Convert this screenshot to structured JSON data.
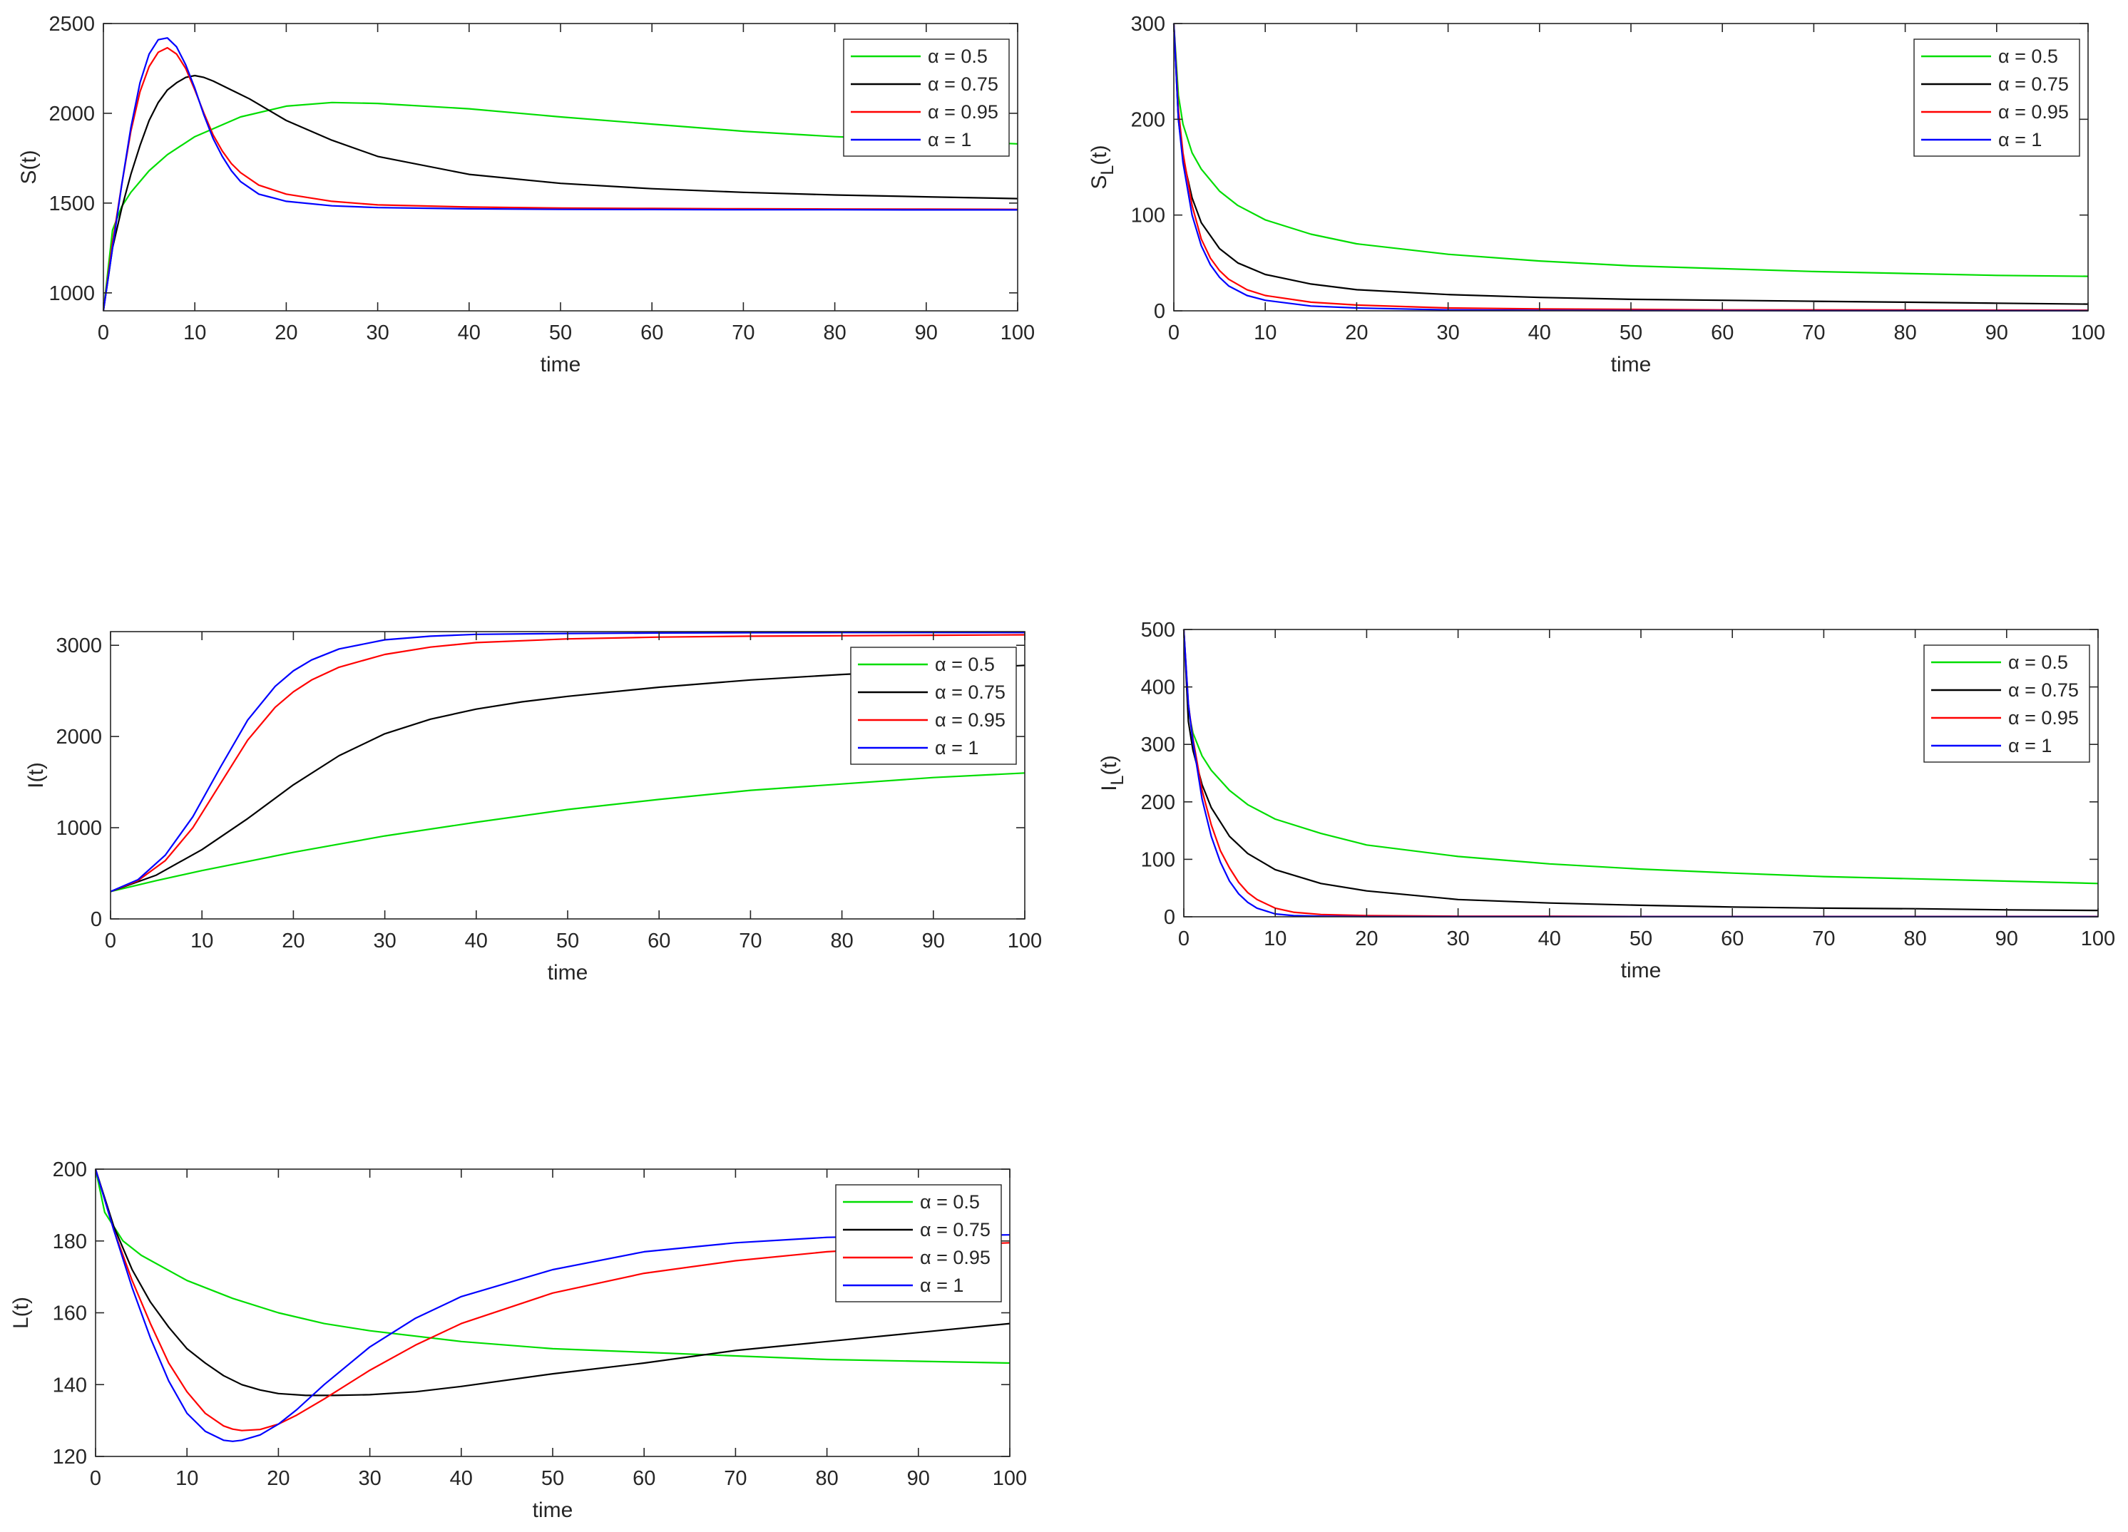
{
  "chart_data": [
    {
      "id": "S",
      "type": "line",
      "title": "",
      "xlabel": "time",
      "ylabel": "S(t)",
      "xlim": [
        0,
        100
      ],
      "ylim": [
        900,
        2500
      ],
      "xticks": [
        0,
        10,
        20,
        30,
        40,
        50,
        60,
        70,
        80,
        90,
        100
      ],
      "yticks": [
        1000,
        1500,
        2000,
        2500
      ],
      "legend_position": "top-right",
      "series": [
        {
          "name": "α = 0.5",
          "color": "#00dd00",
          "x": [
            0,
            1,
            2,
            3,
            5,
            7,
            10,
            15,
            20,
            25,
            30,
            40,
            50,
            60,
            70,
            80,
            90,
            100
          ],
          "y": [
            900,
            1350,
            1480,
            1560,
            1680,
            1770,
            1870,
            1980,
            2040,
            2060,
            2055,
            2025,
            1980,
            1940,
            1900,
            1870,
            1850,
            1830
          ]
        },
        {
          "name": "α = 0.75",
          "color": "#000000",
          "x": [
            0,
            1,
            2,
            3,
            4,
            5,
            6,
            7,
            8,
            9,
            10,
            11,
            12,
            14,
            16,
            18,
            20,
            25,
            30,
            40,
            50,
            60,
            70,
            80,
            90,
            100
          ],
          "y": [
            900,
            1250,
            1470,
            1660,
            1820,
            1960,
            2060,
            2130,
            2170,
            2200,
            2210,
            2200,
            2180,
            2130,
            2080,
            2020,
            1960,
            1850,
            1760,
            1660,
            1610,
            1580,
            1560,
            1545,
            1535,
            1525
          ]
        },
        {
          "name": "α = 0.95",
          "color": "#ff0000",
          "x": [
            0,
            1,
            2,
            3,
            4,
            5,
            6,
            7,
            8,
            9,
            10,
            11,
            12,
            13,
            14,
            15,
            17,
            20,
            25,
            30,
            40,
            50,
            60,
            70,
            80,
            90,
            100
          ],
          "y": [
            900,
            1280,
            1600,
            1900,
            2120,
            2260,
            2340,
            2365,
            2330,
            2250,
            2130,
            2000,
            1880,
            1790,
            1720,
            1670,
            1600,
            1550,
            1510,
            1490,
            1478,
            1472,
            1470,
            1468,
            1467,
            1466,
            1465
          ]
        },
        {
          "name": "α = 1",
          "color": "#0000ff",
          "x": [
            0,
            1,
            2,
            3,
            4,
            5,
            6,
            7,
            8,
            9,
            10,
            11,
            12,
            13,
            14,
            15,
            17,
            20,
            25,
            30,
            40,
            50,
            60,
            70,
            80,
            90,
            100
          ],
          "y": [
            900,
            1250,
            1600,
            1920,
            2170,
            2330,
            2410,
            2420,
            2370,
            2270,
            2140,
            1990,
            1860,
            1760,
            1680,
            1620,
            1550,
            1510,
            1485,
            1475,
            1468,
            1465,
            1464,
            1463,
            1463,
            1462,
            1462
          ]
        }
      ]
    },
    {
      "id": "SL",
      "type": "line",
      "title": "",
      "xlabel": "time",
      "ylabel": "S_L(t)",
      "ylabel_main": "S",
      "ylabel_sub": "L",
      "ylabel_tail": "(t)",
      "xlim": [
        0,
        100
      ],
      "ylim": [
        0,
        300
      ],
      "xticks": [
        0,
        10,
        20,
        30,
        40,
        50,
        60,
        70,
        80,
        90,
        100
      ],
      "yticks": [
        0,
        100,
        200,
        300
      ],
      "legend_position": "top-right",
      "series": [
        {
          "name": "α = 0.5",
          "color": "#00dd00",
          "x": [
            0,
            0.5,
            1,
            2,
            3,
            5,
            7,
            10,
            15,
            20,
            30,
            40,
            50,
            60,
            70,
            80,
            90,
            100
          ],
          "y": [
            300,
            225,
            195,
            165,
            148,
            125,
            110,
            95,
            80,
            70,
            59,
            52,
            47,
            44,
            41,
            39,
            37,
            36
          ]
        },
        {
          "name": "α = 0.75",
          "color": "#000000",
          "x": [
            0,
            0.5,
            1,
            2,
            3,
            5,
            7,
            10,
            15,
            20,
            30,
            40,
            50,
            60,
            70,
            80,
            90,
            100
          ],
          "y": [
            300,
            200,
            160,
            118,
            92,
            65,
            50,
            38,
            28,
            22,
            17,
            14,
            12,
            11,
            10,
            9,
            8,
            7
          ]
        },
        {
          "name": "α = 0.95",
          "color": "#ff0000",
          "x": [
            0,
            0.5,
            1,
            2,
            3,
            4,
            5,
            6,
            8,
            10,
            15,
            20,
            30,
            40,
            50,
            60,
            70,
            80,
            90,
            100
          ],
          "y": [
            300,
            210,
            165,
            110,
            75,
            55,
            42,
            33,
            22,
            16,
            9,
            6,
            3,
            2,
            1.5,
            1,
            1,
            0.8,
            0.7,
            0.6
          ]
        },
        {
          "name": "α = 1",
          "color": "#0000ff",
          "x": [
            0,
            0.5,
            1,
            2,
            3,
            4,
            5,
            6,
            8,
            10,
            15,
            20,
            30,
            40,
            50,
            60,
            70,
            80,
            90,
            100
          ],
          "y": [
            300,
            200,
            155,
            100,
            68,
            48,
            35,
            26,
            16,
            11,
            5,
            3,
            1,
            0.5,
            0.3,
            0.2,
            0.1,
            0.1,
            0.1,
            0.1
          ]
        }
      ]
    },
    {
      "id": "I",
      "type": "line",
      "title": "",
      "xlabel": "time",
      "ylabel": "I(t)",
      "xlim": [
        0,
        100
      ],
      "ylim": [
        0,
        3150
      ],
      "xticks": [
        0,
        10,
        20,
        30,
        40,
        50,
        60,
        70,
        80,
        90,
        100
      ],
      "yticks": [
        0,
        1000,
        2000,
        3000
      ],
      "legend_position": "top-right",
      "series": [
        {
          "name": "α = 0.5",
          "color": "#00dd00",
          "x": [
            0,
            5,
            10,
            15,
            20,
            25,
            30,
            40,
            50,
            60,
            70,
            80,
            90,
            100
          ],
          "y": [
            300,
            420,
            530,
            630,
            730,
            820,
            910,
            1060,
            1200,
            1310,
            1410,
            1480,
            1550,
            1600
          ]
        },
        {
          "name": "α = 0.75",
          "color": "#000000",
          "x": [
            0,
            5,
            10,
            15,
            20,
            25,
            30,
            35,
            40,
            45,
            50,
            60,
            70,
            80,
            90,
            100
          ],
          "y": [
            300,
            480,
            760,
            1100,
            1470,
            1790,
            2030,
            2190,
            2300,
            2380,
            2440,
            2540,
            2620,
            2680,
            2730,
            2780
          ]
        },
        {
          "name": "α = 0.95",
          "color": "#ff0000",
          "x": [
            0,
            3,
            6,
            9,
            12,
            15,
            18,
            20,
            22,
            25,
            30,
            35,
            40,
            50,
            60,
            70,
            80,
            90,
            100
          ],
          "y": [
            300,
            420,
            640,
            1000,
            1480,
            1960,
            2320,
            2490,
            2620,
            2760,
            2900,
            2980,
            3030,
            3070,
            3090,
            3100,
            3105,
            3110,
            3115
          ]
        },
        {
          "name": "α = 1",
          "color": "#0000ff",
          "x": [
            0,
            3,
            6,
            9,
            12,
            15,
            18,
            20,
            22,
            25,
            30,
            35,
            40,
            50,
            60,
            70,
            80,
            90,
            100
          ],
          "y": [
            300,
            430,
            700,
            1120,
            1660,
            2180,
            2550,
            2720,
            2840,
            2960,
            3060,
            3100,
            3120,
            3130,
            3135,
            3138,
            3140,
            3140,
            3140
          ]
        }
      ]
    },
    {
      "id": "IL",
      "type": "line",
      "title": "",
      "xlabel": "time",
      "ylabel": "I_L(t)",
      "ylabel_main": "I",
      "ylabel_sub": "L",
      "ylabel_tail": "(t)",
      "xlim": [
        0,
        100
      ],
      "ylim": [
        0,
        500
      ],
      "xticks": [
        0,
        10,
        20,
        30,
        40,
        50,
        60,
        70,
        80,
        90,
        100
      ],
      "yticks": [
        0,
        100,
        200,
        300,
        400,
        500
      ],
      "legend_position": "top-right",
      "series": [
        {
          "name": "α = 0.5",
          "color": "#00dd00",
          "x": [
            0,
            0.5,
            1,
            2,
            3,
            5,
            7,
            10,
            15,
            20,
            30,
            40,
            50,
            60,
            70,
            80,
            90,
            100
          ],
          "y": [
            500,
            360,
            320,
            280,
            255,
            220,
            195,
            170,
            145,
            125,
            105,
            92,
            83,
            76,
            70,
            66,
            62,
            58
          ]
        },
        {
          "name": "α = 0.75",
          "color": "#000000",
          "x": [
            0,
            0.5,
            1,
            2,
            3,
            5,
            7,
            10,
            15,
            20,
            30,
            40,
            50,
            60,
            70,
            80,
            90,
            100
          ],
          "y": [
            500,
            340,
            290,
            230,
            190,
            140,
            110,
            82,
            58,
            45,
            30,
            24,
            20,
            17,
            15,
            14,
            12,
            11
          ]
        },
        {
          "name": "α = 0.95",
          "color": "#ff0000",
          "x": [
            0,
            0.5,
            1,
            2,
            3,
            4,
            5,
            6,
            7,
            8,
            10,
            12,
            15,
            20,
            30,
            40,
            50,
            60,
            70,
            80,
            90,
            100
          ],
          "y": [
            500,
            370,
            310,
            220,
            160,
            115,
            85,
            60,
            42,
            30,
            15,
            8,
            4,
            2,
            1,
            1,
            0.5,
            0.5,
            0.5,
            0.5,
            0.5,
            0.5
          ]
        },
        {
          "name": "α = 1",
          "color": "#0000ff",
          "x": [
            0,
            0.5,
            1,
            2,
            3,
            4,
            5,
            6,
            7,
            8,
            10,
            12,
            15,
            20,
            30,
            40,
            50,
            60,
            70,
            80,
            90,
            100
          ],
          "y": [
            500,
            370,
            305,
            205,
            140,
            95,
            62,
            40,
            25,
            15,
            5,
            2,
            1,
            0.3,
            0.1,
            0.1,
            0.1,
            0.1,
            0.1,
            0.1,
            0.1,
            0.1
          ]
        }
      ]
    },
    {
      "id": "L",
      "type": "line",
      "title": "",
      "xlabel": "time",
      "ylabel": "L(t)",
      "xlim": [
        0,
        100
      ],
      "ylim": [
        120,
        200
      ],
      "xticks": [
        0,
        10,
        20,
        30,
        40,
        50,
        60,
        70,
        80,
        90,
        100
      ],
      "yticks": [
        120,
        140,
        160,
        180,
        200
      ],
      "legend_position": "top-right",
      "series": [
        {
          "name": "α = 0.5",
          "color": "#00dd00",
          "x": [
            0,
            1,
            3,
            5,
            10,
            15,
            20,
            25,
            30,
            40,
            50,
            60,
            70,
            80,
            90,
            100
          ],
          "y": [
            200,
            188,
            180,
            176,
            169,
            164,
            160,
            157,
            155,
            152,
            150,
            149,
            148,
            147,
            146.5,
            146
          ]
        },
        {
          "name": "α = 0.75",
          "color": "#000000",
          "x": [
            0,
            2,
            4,
            6,
            8,
            10,
            12,
            14,
            16,
            18,
            20,
            23,
            26,
            30,
            35,
            40,
            50,
            60,
            70,
            80,
            90,
            100
          ],
          "y": [
            200,
            184,
            172,
            163,
            156,
            150,
            146,
            142.5,
            140,
            138.5,
            137.5,
            137,
            137,
            137.2,
            138,
            139.5,
            143,
            146,
            149.5,
            152,
            154.5,
            157
          ]
        },
        {
          "name": "α = 0.95",
          "color": "#ff0000",
          "x": [
            0,
            2,
            4,
            6,
            8,
            10,
            12,
            14,
            15,
            16,
            18,
            20,
            22,
            25,
            30,
            35,
            40,
            50,
            60,
            70,
            80,
            90,
            100
          ],
          "y": [
            200,
            183,
            169,
            157,
            146,
            138,
            132,
            128.5,
            127.6,
            127.2,
            127.5,
            129,
            131.5,
            136,
            144,
            151,
            157,
            165.5,
            171,
            174.5,
            177,
            178.5,
            179.5
          ]
        },
        {
          "name": "α = 1",
          "color": "#0000ff",
          "x": [
            0,
            2,
            4,
            6,
            8,
            10,
            12,
            14,
            15,
            16,
            18,
            20,
            22,
            25,
            30,
            35,
            40,
            50,
            60,
            70,
            80,
            90,
            100
          ],
          "y": [
            200,
            183,
            167,
            153,
            141,
            132,
            127,
            124.5,
            124.2,
            124.5,
            126,
            129,
            133,
            140,
            150.5,
            158.5,
            164.5,
            172,
            177,
            179.5,
            181,
            181.5,
            181.7
          ]
        }
      ]
    }
  ]
}
